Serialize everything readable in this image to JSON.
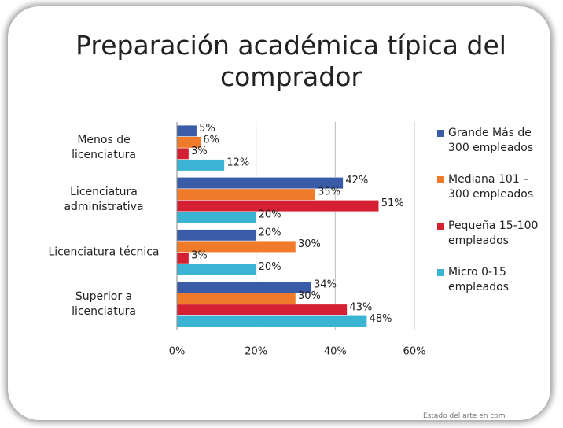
{
  "chart_data": {
    "type": "bar",
    "orientation": "horizontal",
    "title": "Preparación académica típica del comprador",
    "categories": [
      "Menos de licenciatura",
      "Licenciatura administrativa",
      "Licenciatura técnica",
      "Superior a licenciatura"
    ],
    "series": [
      {
        "name": "Grande Más de 300 empleados",
        "color": "#3a5ba8",
        "values": [
          5,
          42,
          20,
          34
        ],
        "value_labels": [
          "5%",
          "42%",
          "20%",
          "34%"
        ]
      },
      {
        "name": "Mediana 101 – 300 empleados",
        "color": "#ee7a2a",
        "values": [
          6,
          35,
          30,
          30
        ],
        "value_labels": [
          "6%",
          "35%",
          "30%",
          "30%"
        ]
      },
      {
        "name": "Pequeña 15-100 empleados",
        "color": "#d42032",
        "values": [
          3,
          51,
          3,
          43
        ],
        "value_labels": [
          "3%",
          "51%",
          "3%",
          "43%"
        ]
      },
      {
        "name": "Micro 0-15 empleados",
        "color": "#3bb4d4",
        "values": [
          12,
          20,
          20,
          48
        ],
        "value_labels": [
          "12%",
          "20%",
          "20%",
          "48%"
        ]
      }
    ],
    "xlim": [
      0,
      60
    ],
    "xticks": [
      {
        "value": 0,
        "label": "0%"
      },
      {
        "value": 20,
        "label": "20%"
      },
      {
        "value": 40,
        "label": "40%"
      },
      {
        "value": 60,
        "label": "60%"
      }
    ],
    "grid": true,
    "legend": "right"
  },
  "footer": "Estado del arte en com"
}
